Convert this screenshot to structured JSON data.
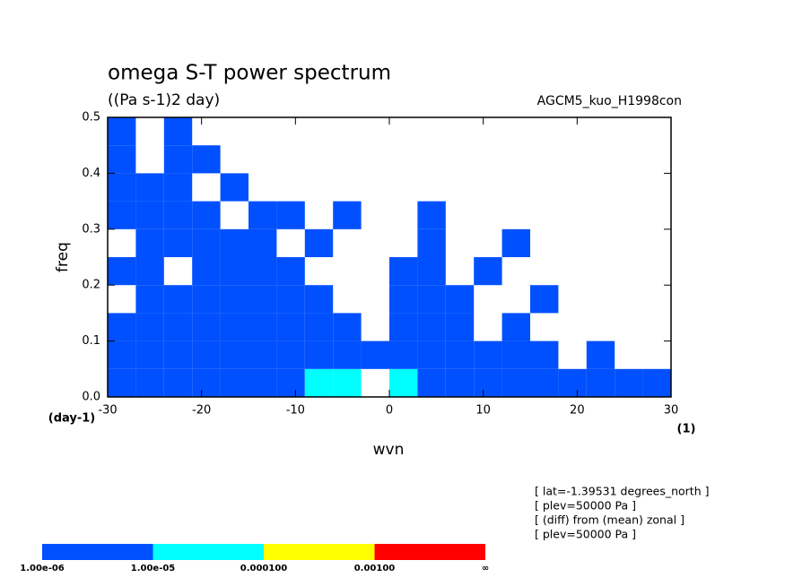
{
  "chart_data": {
    "type": "heatmap",
    "title": "omega S-T power spectrum",
    "subtitle": "((Pa s-1)2 day)",
    "run_label": "AGCM5_kuo_H1998con",
    "x_label": "wvn",
    "x_unit": "(1)",
    "y_label": "freq",
    "y_unit": "(day-1)",
    "xlim": [
      -30,
      30
    ],
    "xticks": [
      -30,
      -20,
      -10,
      0,
      10,
      20,
      30
    ],
    "ylim": [
      0,
      0.5
    ],
    "yticks": [
      {
        "value": 0,
        "label": "0.0"
      },
      0.1,
      0.2,
      0.3,
      0.4,
      0.5
    ],
    "x": [
      -28.5,
      -25.5,
      -22.5,
      -19.5,
      -16.5,
      -13.5,
      -10.5,
      -7.5,
      -4.5,
      -1.5,
      1.5,
      4.5,
      7.5,
      10.5,
      13.5,
      16.5,
      19.5,
      22.5,
      25.5,
      28.5
    ],
    "y": [
      0.025,
      0.075,
      0.125,
      0.175,
      0.225,
      0.275,
      0.325,
      0.375,
      0.425,
      0.475
    ],
    "z": [
      [
        2e-06,
        2e-06,
        2e-06,
        2e-06,
        2e-06,
        2e-06,
        2e-06,
        2e-05,
        2e-05,
        null,
        2e-05,
        2e-06,
        2e-06,
        2e-06,
        2e-06,
        2e-06,
        2e-06,
        2e-06,
        2e-06,
        2e-06
      ],
      [
        2e-06,
        2e-06,
        2e-06,
        2e-06,
        2e-06,
        2e-06,
        2e-06,
        2e-06,
        2e-06,
        2e-06,
        2e-06,
        2e-06,
        2e-06,
        2e-06,
        2e-06,
        2e-06,
        null,
        2e-06,
        null,
        null
      ],
      [
        2e-06,
        2e-06,
        2e-06,
        2e-06,
        2e-06,
        2e-06,
        2e-06,
        2e-06,
        2e-06,
        null,
        2e-06,
        2e-06,
        2e-06,
        null,
        2e-06,
        null,
        null,
        null,
        null,
        null
      ],
      [
        null,
        2e-06,
        2e-06,
        2e-06,
        2e-06,
        2e-06,
        2e-06,
        2e-06,
        null,
        null,
        2e-06,
        2e-06,
        2e-06,
        null,
        null,
        2e-06,
        null,
        null,
        null,
        null
      ],
      [
        2e-06,
        2e-06,
        null,
        2e-06,
        2e-06,
        2e-06,
        2e-06,
        null,
        null,
        null,
        2e-06,
        2e-06,
        null,
        2e-06,
        null,
        null,
        null,
        null,
        null,
        null
      ],
      [
        null,
        2e-06,
        2e-06,
        2e-06,
        2e-06,
        2e-06,
        null,
        2e-06,
        null,
        null,
        null,
        2e-06,
        null,
        null,
        2e-06,
        null,
        null,
        null,
        null,
        null
      ],
      [
        2e-06,
        2e-06,
        2e-06,
        2e-06,
        null,
        2e-06,
        2e-06,
        null,
        2e-06,
        null,
        null,
        2e-06,
        null,
        null,
        null,
        null,
        null,
        null,
        null,
        null
      ],
      [
        2e-06,
        2e-06,
        2e-06,
        null,
        2e-06,
        null,
        null,
        null,
        null,
        null,
        null,
        null,
        null,
        null,
        null,
        null,
        null,
        null,
        null,
        null
      ],
      [
        2e-06,
        null,
        2e-06,
        2e-06,
        null,
        null,
        null,
        null,
        null,
        null,
        null,
        null,
        null,
        null,
        null,
        null,
        null,
        null,
        null,
        null
      ],
      [
        2e-06,
        null,
        2e-06,
        null,
        null,
        null,
        null,
        null,
        null,
        null,
        null,
        null,
        null,
        null,
        null,
        null,
        null,
        null,
        null,
        null
      ]
    ],
    "levels": [
      1e-06,
      1e-05,
      0.0001,
      0.001
    ],
    "colors": [
      "#0050ff",
      "#00ffff",
      "#ffff00",
      "#ff0000"
    ],
    "colorbar_labels": [
      "1.00e-06",
      "1.00e-05",
      "0.000100",
      "0.00100",
      "∞"
    ],
    "annotations": [
      "[ lat=-1.39531 degrees_north ]",
      "[ plev=50000 Pa ]",
      "[ (diff) from (mean) zonal ]",
      "[ plev=50000 Pa ]"
    ]
  }
}
